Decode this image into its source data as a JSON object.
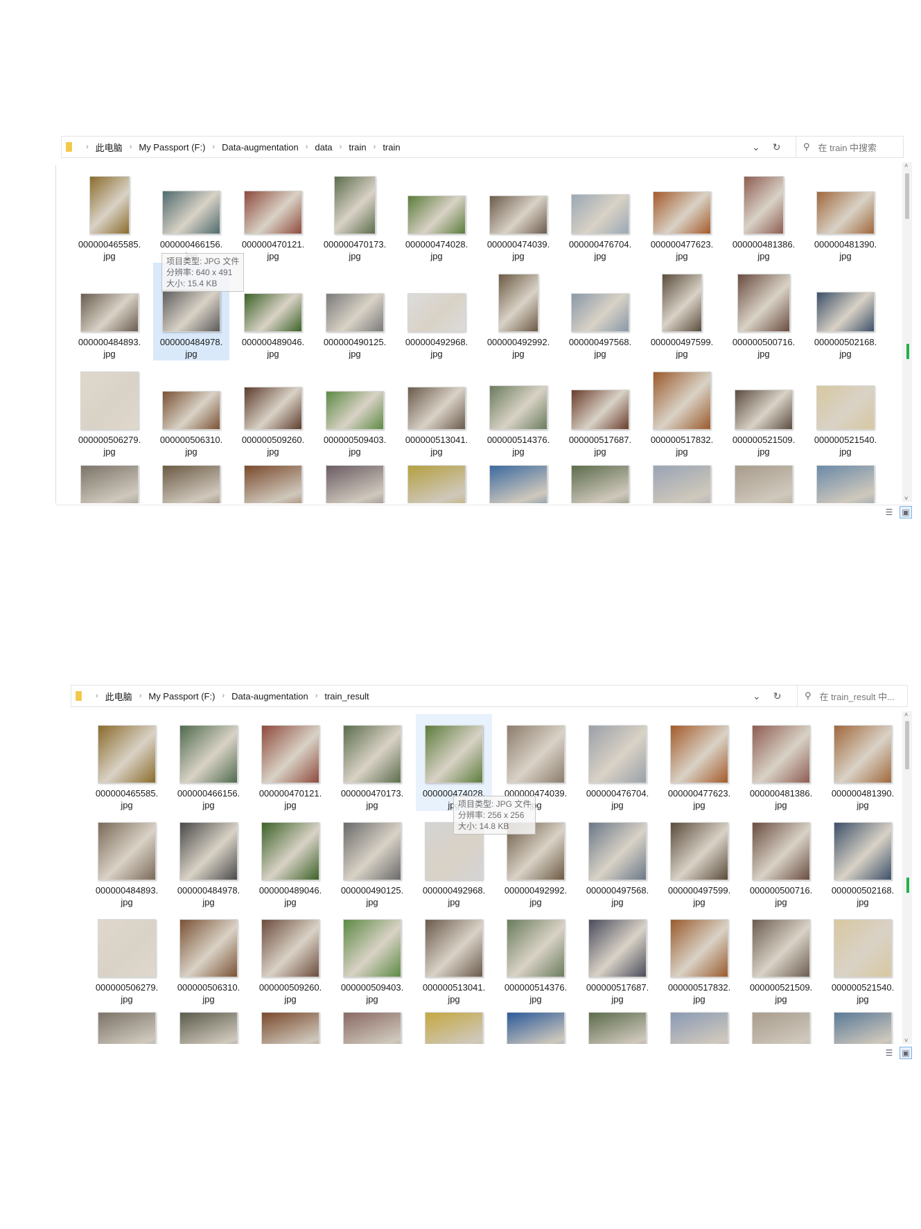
{
  "top_window": {
    "breadcrumb": [
      "此电脑",
      "My Passport (F:)",
      "Data-augmentation",
      "data",
      "train",
      "train"
    ],
    "search_placeholder": "在 train 中搜索",
    "tooltip": [
      "项目类型: JPG 文件",
      "分辨率: 640 x 491",
      "大小: 15.4 KB"
    ],
    "files": [
      {
        "line1": "000000465585.",
        "line2": "jpg",
        "color": "#8a6b2b",
        "w": 58,
        "h": 84
      },
      {
        "line1": "000000466156.",
        "line2": "jpg",
        "color": "#4f6b6e",
        "w": 84,
        "h": 63
      },
      {
        "line1": "000000470121.",
        "line2": "jpg",
        "color": "#8e4a3c",
        "w": 84,
        "h": 63
      },
      {
        "line1": "000000470173.",
        "line2": "jpg",
        "color": "#5c6d4c",
        "w": 60,
        "h": 84
      },
      {
        "line1": "000000474028.",
        "line2": "jpg",
        "color": "#5c7c3c",
        "w": 84,
        "h": 56
      },
      {
        "line1": "000000474039.",
        "line2": "jpg",
        "color": "#6c5c4c",
        "w": 84,
        "h": 56
      },
      {
        "line1": "000000476704.",
        "line2": "jpg",
        "color": "#9aa8b4",
        "w": 84,
        "h": 58
      },
      {
        "line1": "000000477623.",
        "line2": "jpg",
        "color": "#a45a2a",
        "w": 84,
        "h": 62
      },
      {
        "line1": "000000481386.",
        "line2": "jpg",
        "color": "#8e5c52",
        "w": 58,
        "h": 84
      },
      {
        "line1": "000000481390.",
        "line2": "jpg",
        "color": "#a0683c",
        "w": 84,
        "h": 62
      },
      {
        "line1": "000000484893.",
        "line2": "jpg",
        "color": "#6a5c50",
        "w": 84,
        "h": 56
      },
      {
        "line1": "000000484978.",
        "line2": "jpg",
        "color": "#5a5a5a",
        "w": 84,
        "h": 62
      },
      {
        "line1": "000000489046.",
        "line2": "jpg",
        "color": "#3c6228",
        "w": 84,
        "h": 56
      },
      {
        "line1": "000000490125.",
        "line2": "jpg",
        "color": "#7a7a7a",
        "w": 84,
        "h": 56
      },
      {
        "line1": "000000492968.",
        "line2": "jpg",
        "color": "#dcdcdc",
        "w": 84,
        "h": 56
      },
      {
        "line1": "000000492992.",
        "line2": "jpg",
        "color": "#6c5a44",
        "w": 58,
        "h": 84
      },
      {
        "line1": "000000497568.",
        "line2": "jpg",
        "color": "#8898a8",
        "w": 84,
        "h": 56
      },
      {
        "line1": "000000497599.",
        "line2": "jpg",
        "color": "#5a4c3c",
        "w": 58,
        "h": 84
      },
      {
        "line1": "000000500716.",
        "line2": "jpg",
        "color": "#6a4c40",
        "w": 76,
        "h": 84
      },
      {
        "line1": "000000502168.",
        "line2": "jpg",
        "color": "#3c5068",
        "w": 84,
        "h": 58
      },
      {
        "line1": "000000506279.",
        "line2": "jpg",
        "color": "#e0d8cc",
        "w": 84,
        "h": 84
      },
      {
        "line1": "000000506310.",
        "line2": "jpg",
        "color": "#7a5234",
        "w": 84,
        "h": 56
      },
      {
        "line1": "000000509260.",
        "line2": "jpg",
        "color": "#5c3c2c",
        "w": 84,
        "h": 62
      },
      {
        "line1": "000000509403.",
        "line2": "jpg",
        "color": "#5c8a44",
        "w": 84,
        "h": 56
      },
      {
        "line1": "000000513041.",
        "line2": "jpg",
        "color": "#6a5a4c",
        "w": 84,
        "h": 62
      },
      {
        "line1": "000000514376.",
        "line2": "jpg",
        "color": "#6a7c5c",
        "w": 84,
        "h": 64
      },
      {
        "line1": "000000517687.",
        "line2": "jpg",
        "color": "#6a3c2c",
        "w": 84,
        "h": 58
      },
      {
        "line1": "000000517832.",
        "line2": "jpg",
        "color": "#9a5a2c",
        "w": 84,
        "h": 84
      },
      {
        "line1": "000000521509.",
        "line2": "jpg",
        "color": "#5c4c40",
        "w": 84,
        "h": 58
      },
      {
        "line1": "000000521540.",
        "line2": "jpg",
        "color": "#d8c8a0",
        "w": 84,
        "h": 64
      }
    ],
    "partial_row_colors": [
      "#7c7468",
      "#6c5a44",
      "#7a4a2c",
      "#6a5c64",
      "#b4a040",
      "#3c6aa0",
      "#5c6c4c",
      "#9aa4b4",
      "#a89c8c",
      "#6a8aa8"
    ]
  },
  "bottom_window": {
    "breadcrumb": [
      "此电脑",
      "My Passport (F:)",
      "Data-augmentation",
      "train_result"
    ],
    "search_placeholder": "在 train_result 中...",
    "tooltip": [
      "项目类型: JPG 文件",
      "分辨率: 256 x 256",
      "大小: 14.8 KB"
    ],
    "files": [
      {
        "line1": "000000465585.",
        "line2": "jpg",
        "color": "#8a6b2b"
      },
      {
        "line1": "000000466156.",
        "line2": "jpg",
        "color": "#4f6b4e"
      },
      {
        "line1": "000000470121.",
        "line2": "jpg",
        "color": "#8e4a3c"
      },
      {
        "line1": "000000470173.",
        "line2": "jpg",
        "color": "#5c6d4c"
      },
      {
        "line1": "000000474028.",
        "line2": "jpg",
        "color": "#5c7c3c"
      },
      {
        "line1": "000000474039.",
        "line2": "jpg",
        "color": "#8c7c6c"
      },
      {
        "line1": "000000476704.",
        "line2": "jpg",
        "color": "#9aa0a8"
      },
      {
        "line1": "000000477623.",
        "line2": "jpg",
        "color": "#a45a2a"
      },
      {
        "line1": "000000481386.",
        "line2": "jpg",
        "color": "#8e5c52"
      },
      {
        "line1": "000000481390.",
        "line2": "jpg",
        "color": "#a0683c"
      },
      {
        "line1": "000000484893.",
        "line2": "jpg",
        "color": "#7a6a58"
      },
      {
        "line1": "000000484978.",
        "line2": "jpg",
        "color": "#4a4a4a"
      },
      {
        "line1": "000000489046.",
        "line2": "jpg",
        "color": "#3c6228"
      },
      {
        "line1": "000000490125.",
        "line2": "jpg",
        "color": "#6a6a6a"
      },
      {
        "line1": "000000492968.",
        "line2": "jpg",
        "color": "#d4d4d4"
      },
      {
        "line1": "000000492992.",
        "line2": "jpg",
        "color": "#6c5a44"
      },
      {
        "line1": "000000497568.",
        "line2": "jpg",
        "color": "#6a7888"
      },
      {
        "line1": "000000497599.",
        "line2": "jpg",
        "color": "#5a4c3c"
      },
      {
        "line1": "000000500716.",
        "line2": "jpg",
        "color": "#6a4c40"
      },
      {
        "line1": "000000502168.",
        "line2": "jpg",
        "color": "#3c5068"
      },
      {
        "line1": "000000506279.",
        "line2": "jpg",
        "color": "#e0d8cc"
      },
      {
        "line1": "000000506310.",
        "line2": "jpg",
        "color": "#7a5234"
      },
      {
        "line1": "000000509260.",
        "line2": "jpg",
        "color": "#6c4c3c"
      },
      {
        "line1": "000000509403.",
        "line2": "jpg",
        "color": "#5c8a44"
      },
      {
        "line1": "000000513041.",
        "line2": "jpg",
        "color": "#6a5a4c"
      },
      {
        "line1": "000000514376.",
        "line2": "jpg",
        "color": "#6a7c5c"
      },
      {
        "line1": "000000517687.",
        "line2": "jpg",
        "color": "#4a4c5c"
      },
      {
        "line1": "000000517832.",
        "line2": "jpg",
        "color": "#9a5a2c"
      },
      {
        "line1": "000000521509.",
        "line2": "jpg",
        "color": "#6c5c50"
      },
      {
        "line1": "000000521540.",
        "line2": "jpg",
        "color": "#d8c8a0"
      }
    ],
    "partial_row_colors": [
      "#7c7468",
      "#5c5c4c",
      "#7a4a2c",
      "#8a6a64",
      "#c4a840",
      "#2c5a9a",
      "#5c6c4c",
      "#8a9ab4",
      "#a89c8c",
      "#5a7a98"
    ]
  },
  "icons": {
    "refresh": "↻",
    "dropdown": "⌄",
    "search": "⚲",
    "chevron": "›",
    "scroll_up": "˄",
    "scroll_down": "˅",
    "details_view": "☰",
    "thumb_view": "▣"
  }
}
